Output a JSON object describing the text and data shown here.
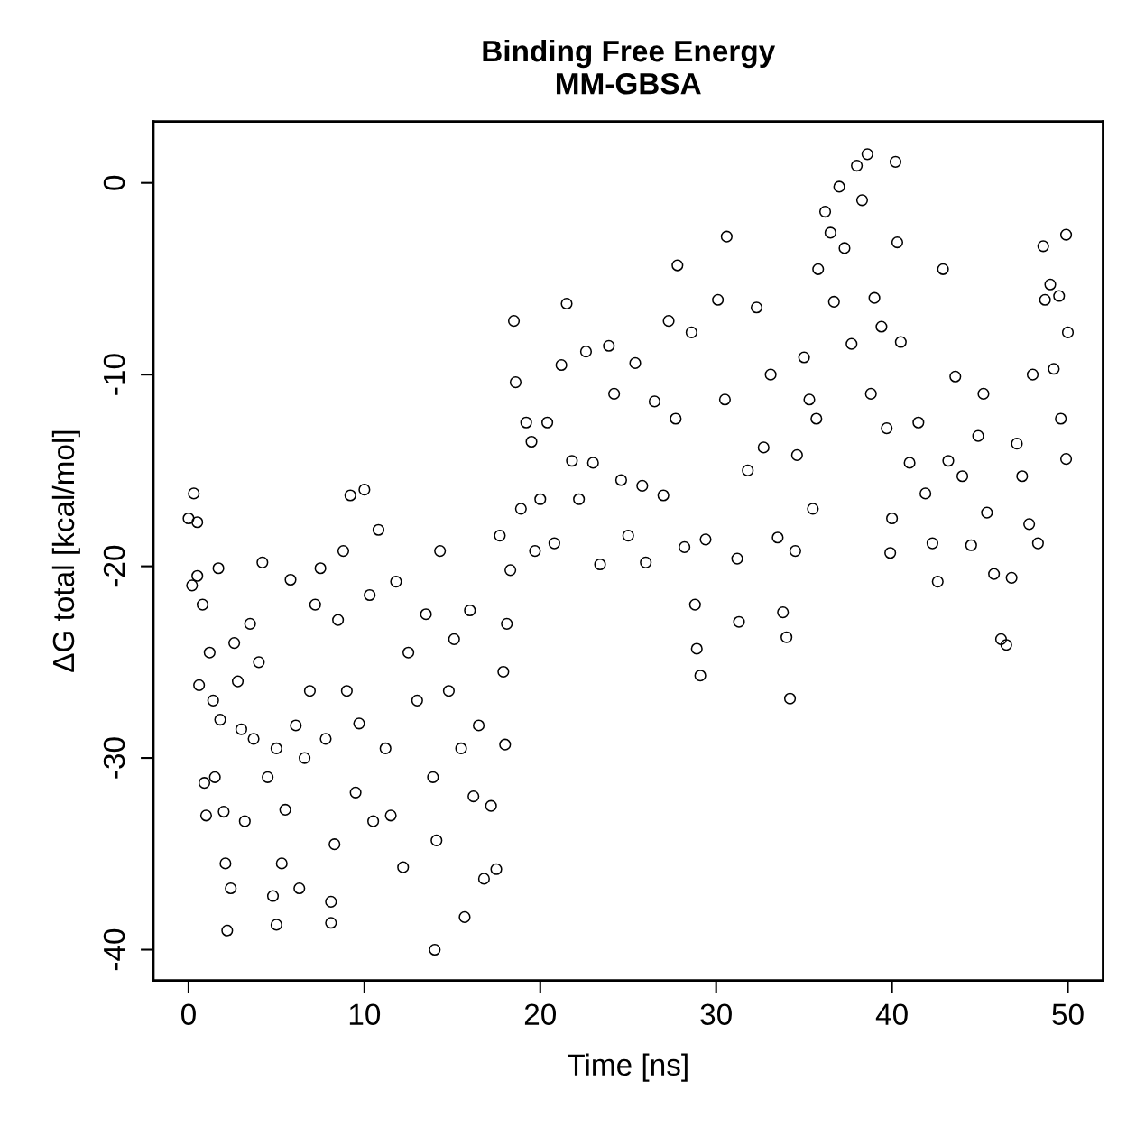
{
  "chart_data": {
    "type": "scatter",
    "title": "Binding Free Energy\nMM-GBSA",
    "xlabel": "Time [ns]",
    "ylabel": "ΔG total [kcal/mol]",
    "xlim": [
      -2,
      52
    ],
    "ylim": [
      -41.6,
      3.2
    ],
    "xticks": [
      0,
      10,
      20,
      30,
      40,
      50
    ],
    "yticks": [
      -40,
      -30,
      -20,
      -10,
      0
    ],
    "grid": false,
    "legend": false,
    "marker": "circle",
    "series": [
      {
        "color": "#000000",
        "x": [
          0,
          0.2,
          0.3,
          0.5,
          0.5,
          0.6,
          0.8,
          0.9,
          1.0,
          1.2,
          1.4,
          1.5,
          1.7,
          1.8,
          2.0,
          2.1,
          2.2,
          2.4,
          2.6,
          2.8,
          3.0,
          3.2,
          3.5,
          3.7,
          4.0,
          4.2,
          4.5,
          4.8,
          5.0,
          5.0,
          5.3,
          5.5,
          5.8,
          6.1,
          6.3,
          6.6,
          6.9,
          7.2,
          7.5,
          7.8,
          8.1,
          8.1,
          8.3,
          8.5,
          8.8,
          9.0,
          9.2,
          9.5,
          9.7,
          10.0,
          10.3,
          10.5,
          10.8,
          11.2,
          11.5,
          11.8,
          12.2,
          12.5,
          13.0,
          13.5,
          13.9,
          14.0,
          14.1,
          14.3,
          14.8,
          15.1,
          15.5,
          15.7,
          16.0,
          16.2,
          16.5,
          16.8,
          17.2,
          17.5,
          17.7,
          17.9,
          18.0,
          18.3,
          18.1,
          18.5,
          18.6,
          18.9,
          19.2,
          19.5,
          19.7,
          20.0,
          20.4,
          20.8,
          21.2,
          21.5,
          21.8,
          22.2,
          22.6,
          23.0,
          23.4,
          23.9,
          24.2,
          24.6,
          25.0,
          25.4,
          25.8,
          26.0,
          26.5,
          27.0,
          27.3,
          27.8,
          27.7,
          28.2,
          28.6,
          28.9,
          29.1,
          28.8,
          29.4,
          30.1,
          30.6,
          30.5,
          31.2,
          31.3,
          31.8,
          32.3,
          32.7,
          33.1,
          33.5,
          33.8,
          34.0,
          34.2,
          34.5,
          34.6,
          35.0,
          35.5,
          35.7,
          35.3,
          35.8,
          36.2,
          36.5,
          36.7,
          37.0,
          37.3,
          37.7,
          38.0,
          38.3,
          38.6,
          38.8,
          39.0,
          39.4,
          39.7,
          39.9,
          40.0,
          40.2,
          40.3,
          40.5,
          41.0,
          41.5,
          41.9,
          42.3,
          42.6,
          42.9,
          43.2,
          43.6,
          44.0,
          44.5,
          44.9,
          45.2,
          45.4,
          45.8,
          46.2,
          46.5,
          46.8,
          47.1,
          47.4,
          47.8,
          48.0,
          48.3,
          48.6,
          48.7,
          49.0,
          49.2,
          49.5,
          49.6,
          49.9,
          50.0,
          49.9
        ],
        "values": [
          -17.5,
          -21,
          -16.2,
          -17.7,
          -20.5,
          -26.2,
          -22,
          -31.3,
          -33,
          -24.5,
          -27,
          -31,
          -20.1,
          -28,
          -32.8,
          -35.5,
          -39,
          -36.8,
          -24,
          -26,
          -28.5,
          -33.3,
          -23,
          -29,
          -25,
          -19.8,
          -31,
          -37.2,
          -29.5,
          -38.7,
          -35.5,
          -32.7,
          -20.7,
          -28.3,
          -36.8,
          -30,
          -26.5,
          -22,
          -20.1,
          -29,
          -37.5,
          -38.6,
          -34.5,
          -22.8,
          -19.2,
          -26.5,
          -16.3,
          -31.8,
          -28.2,
          -16,
          -21.5,
          -33.3,
          -18.1,
          -29.5,
          -33,
          -20.8,
          -35.7,
          -24.5,
          -27,
          -22.5,
          -31,
          -40,
          -34.3,
          -19.2,
          -26.5,
          -23.8,
          -29.5,
          -38.3,
          -22.3,
          -32,
          -28.3,
          -36.3,
          -32.5,
          -35.8,
          -18.4,
          -25.5,
          -29.3,
          -20.2,
          -23,
          -7.2,
          -10.4,
          -17,
          -12.5,
          -13.5,
          -19.2,
          -16.5,
          -12.5,
          -18.8,
          -9.5,
          -6.3,
          -14.5,
          -16.5,
          -8.8,
          -14.6,
          -19.9,
          -8.5,
          -11,
          -15.5,
          -18.4,
          -9.4,
          -15.8,
          -19.8,
          -11.4,
          -16.3,
          -7.2,
          -4.3,
          -12.3,
          -19,
          -7.8,
          -24.3,
          -25.7,
          -22,
          -18.6,
          -6.1,
          -2.8,
          -11.3,
          -19.6,
          -22.9,
          -15,
          -6.5,
          -13.8,
          -10,
          -18.5,
          -22.4,
          -23.7,
          -26.9,
          -19.2,
          -14.2,
          -9.1,
          -17,
          -12.3,
          -11.3,
          -4.5,
          -1.5,
          -2.6,
          -6.2,
          -0.2,
          -3.4,
          -8.4,
          0.9,
          -0.9,
          1.5,
          -11,
          -6,
          -7.5,
          -12.8,
          -19.3,
          -17.5,
          1.1,
          -3.1,
          -8.3,
          -14.6,
          -12.5,
          -16.2,
          -18.8,
          -20.8,
          -4.5,
          -14.5,
          -10.1,
          -15.3,
          -18.9,
          -13.2,
          -11,
          -17.2,
          -20.4,
          -23.8,
          -24.1,
          -20.6,
          -13.6,
          -15.3,
          -17.8,
          -10,
          -18.8,
          -3.3,
          -6.1,
          -5.3,
          -9.7,
          -5.9,
          -12.3,
          -2.7,
          -7.8,
          -14.4
        ]
      }
    ]
  }
}
